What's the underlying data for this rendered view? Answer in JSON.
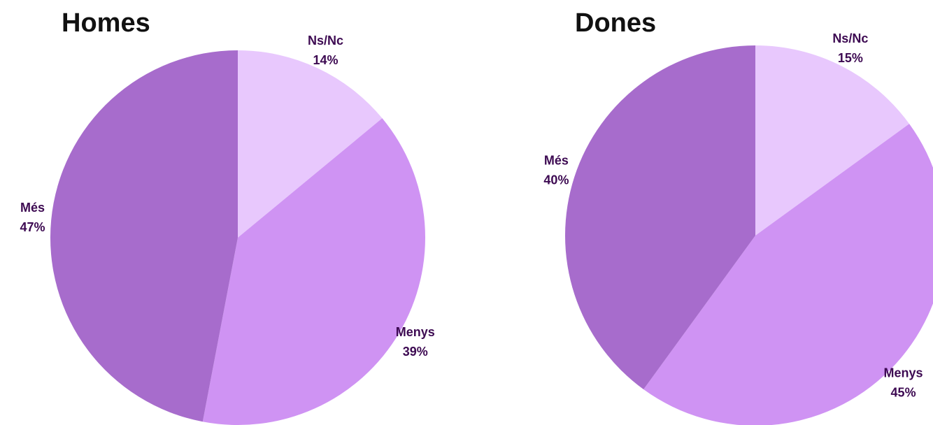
{
  "chart_data": [
    {
      "type": "pie",
      "title": "Homes",
      "categories": [
        "Ns/Nc",
        "Menys",
        "Més"
      ],
      "values": [
        14,
        39,
        47
      ],
      "value_labels": [
        "14%",
        "39%",
        "47%"
      ],
      "colors": [
        "#e8c8fd",
        "#cf93f3",
        "#a76ccc"
      ]
    },
    {
      "type": "pie",
      "title": "Dones",
      "categories": [
        "Ns/Nc",
        "Menys",
        "Més"
      ],
      "values": [
        15,
        45,
        40
      ],
      "value_labels": [
        "15%",
        "45%",
        "40%"
      ],
      "colors": [
        "#e8c8fd",
        "#cf93f3",
        "#a76ccc"
      ]
    }
  ]
}
